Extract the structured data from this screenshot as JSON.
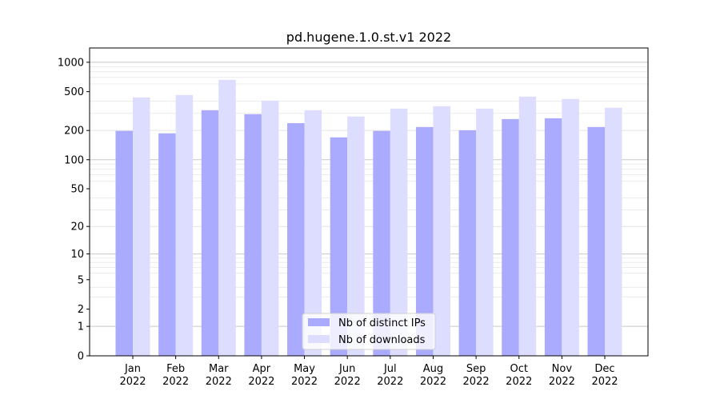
{
  "chart_data": {
    "type": "bar",
    "title": "pd.hugene.1.0.st.v1 2022",
    "xlabel": "",
    "ylabel": "",
    "yscale": "symlog (log10(1+y))",
    "ylim": [
      0,
      1400
    ],
    "yticks": [
      0,
      1,
      2,
      5,
      10,
      20,
      50,
      100,
      200,
      500,
      1000
    ],
    "grid": true,
    "legend_position": "bottom-center",
    "categories": [
      "Jan\n2022",
      "Feb\n2022",
      "Mar\n2022",
      "Apr\n2022",
      "May\n2022",
      "Jun\n2022",
      "Jul\n2022",
      "Aug\n2022",
      "Sep\n2022",
      "Oct\n2022",
      "Nov\n2022",
      "Dec\n2022"
    ],
    "series": [
      {
        "name": "Nb of distinct IPs",
        "color": "#aaaaff",
        "values": [
          198,
          187,
          323,
          294,
          238,
          170,
          198,
          217,
          201,
          262,
          267,
          217
        ]
      },
      {
        "name": "Nb of downloads",
        "color": "#ddddff",
        "values": [
          437,
          462,
          661,
          405,
          323,
          278,
          335,
          355,
          335,
          445,
          421,
          342
        ]
      }
    ]
  }
}
